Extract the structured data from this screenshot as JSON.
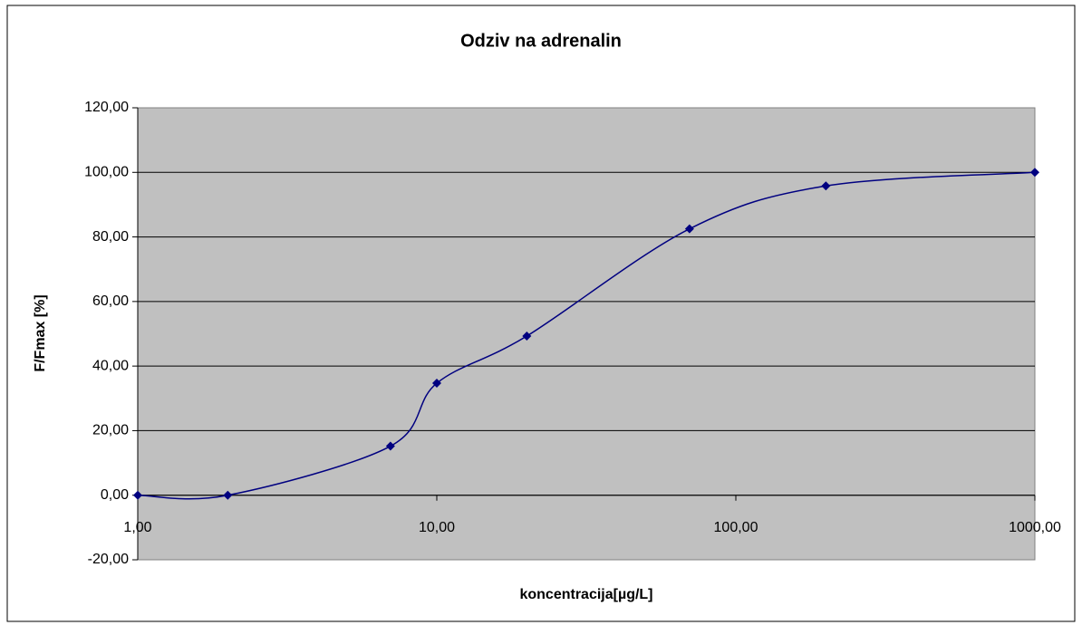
{
  "chart_data": {
    "type": "line",
    "title": "Odziv na adrenalin",
    "x_label": "koncentracija[µg/L]",
    "y_label": "F/Fmax [%]",
    "x": [
      1,
      2,
      7,
      10,
      20,
      70,
      200,
      1000
    ],
    "series": [
      {
        "name": "F/Fmax",
        "color": "#000080",
        "values": [
          0,
          0,
          15.2,
          34.7,
          49.3,
          82.5,
          95.8,
          100
        ]
      }
    ],
    "xscale": "log",
    "smooth": true,
    "xlim": [
      1,
      1000
    ],
    "xticks": [
      {
        "value": 1,
        "label": "1,00"
      },
      {
        "value": 10,
        "label": "10,00"
      },
      {
        "value": 100,
        "label": "100,00"
      },
      {
        "value": 1000,
        "label": "1000,00"
      }
    ],
    "ylim": [
      -20,
      120
    ],
    "yticks": [
      {
        "value": -20,
        "label": "-20,00"
      },
      {
        "value": 0,
        "label": "0,00"
      },
      {
        "value": 20,
        "label": "20,00"
      },
      {
        "value": 40,
        "label": "40,00"
      },
      {
        "value": 60,
        "label": "60,00"
      },
      {
        "value": 80,
        "label": "80,00"
      },
      {
        "value": 100,
        "label": "100,00"
      },
      {
        "value": 120,
        "label": "120,00"
      }
    ],
    "grid": true
  }
}
